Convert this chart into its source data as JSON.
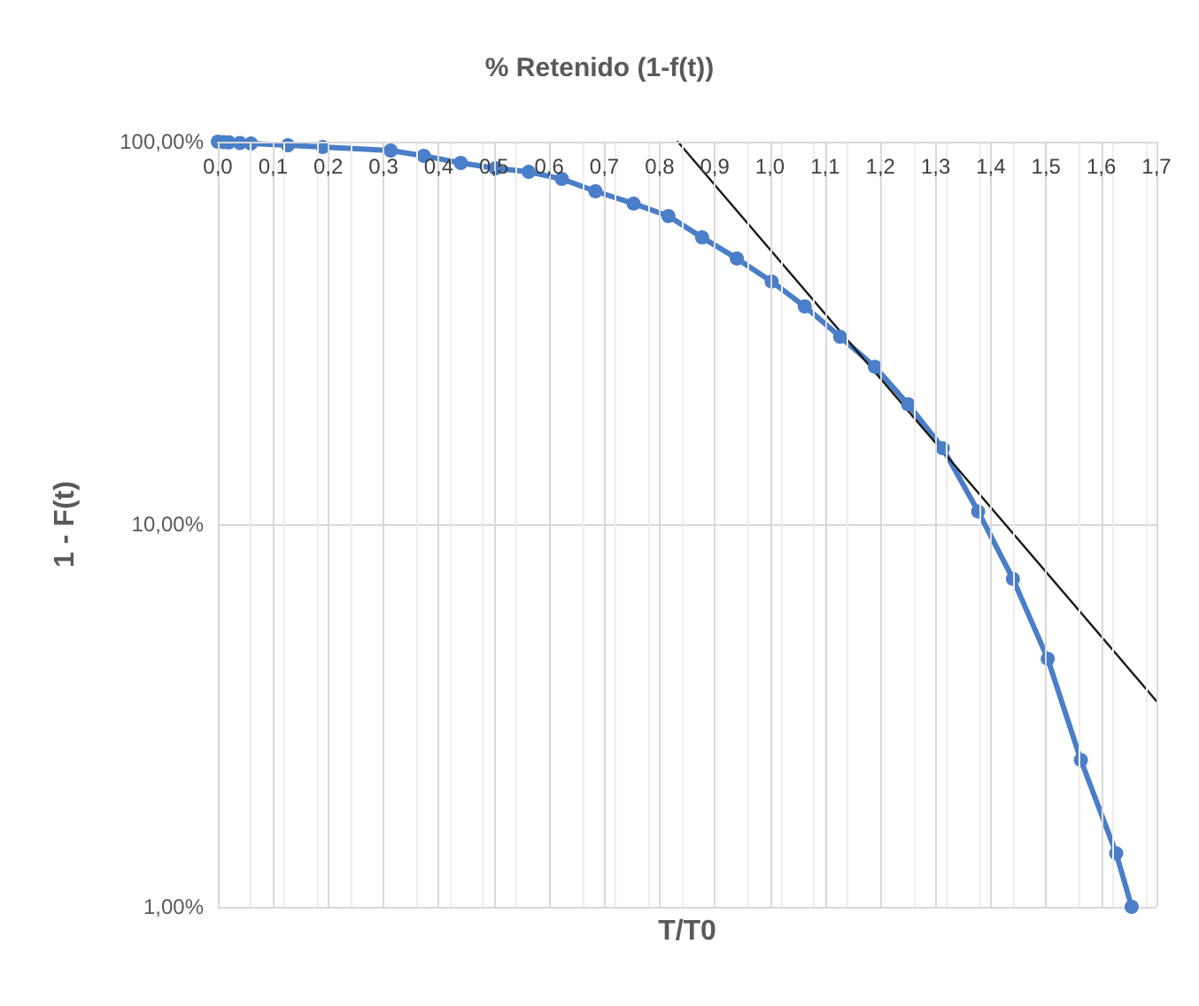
{
  "chart_data": {
    "type": "line",
    "title": "% Retenido (1-f(t))",
    "xlabel": "T/T0",
    "ylabel": "1 - F(t)",
    "log": "y",
    "grid": true,
    "marker": "circle",
    "line_style": "solid",
    "xlim": [
      0,
      1.7
    ],
    "xticks": [
      {
        "value": 0,
        "label": "0,0"
      },
      {
        "value": 0.1,
        "label": "0,1"
      },
      {
        "value": 0.2,
        "label": "0,2"
      },
      {
        "value": 0.3,
        "label": "0,3"
      },
      {
        "value": 0.4,
        "label": "0,4"
      },
      {
        "value": 0.5,
        "label": "0,5"
      },
      {
        "value": 0.6,
        "label": "0,6"
      },
      {
        "value": 0.7,
        "label": "0,7"
      },
      {
        "value": 0.8,
        "label": "0,8"
      },
      {
        "value": 0.9,
        "label": "0,9"
      },
      {
        "value": 1.0,
        "label": "1,0"
      },
      {
        "value": 1.1,
        "label": "1,1"
      },
      {
        "value": 1.2,
        "label": "1,2"
      },
      {
        "value": 1.3,
        "label": "1,3"
      },
      {
        "value": 1.4,
        "label": "1,4"
      },
      {
        "value": 1.5,
        "label": "1,5"
      },
      {
        "value": 1.6,
        "label": "1,6"
      },
      {
        "value": 1.7,
        "label": "1,7"
      }
    ],
    "ylim": [
      1,
      100
    ],
    "yticks": [
      {
        "value": 1,
        "label": "1,00%"
      },
      {
        "value": 10,
        "label": "10,00%"
      },
      {
        "value": 100,
        "label": "100,00%"
      }
    ],
    "series": [
      {
        "color": "#4a7ec8",
        "x": [
          0.0,
          0.01,
          0.02,
          0.04,
          0.06,
          0.127,
          0.19,
          0.313,
          0.373,
          0.44,
          0.503,
          0.563,
          0.623,
          0.684,
          0.753,
          0.816,
          0.877,
          0.94,
          1.003,
          1.063,
          1.127,
          1.19,
          1.25,
          1.313,
          1.377,
          1.44,
          1.503,
          1.563,
          1.627,
          1.655
        ],
        "values": [
          100,
          99.8,
          99.6,
          99.2,
          98.9,
          97.9,
          96.8,
          94.8,
          91.8,
          88.0,
          85.2,
          83.4,
          79.9,
          74.2,
          68.9,
          63.9,
          56.2,
          49.5,
          43.1,
          37.1,
          30.9,
          25.8,
          20.6,
          15.8,
          10.8,
          7.2,
          4.45,
          2.42,
          1.38,
          1.0
        ]
      },
      {
        "color": "#1a1a1a",
        "marker": "none",
        "x": [
          0.833,
          1.7
        ],
        "values": [
          100,
          3.45
        ]
      }
    ]
  }
}
